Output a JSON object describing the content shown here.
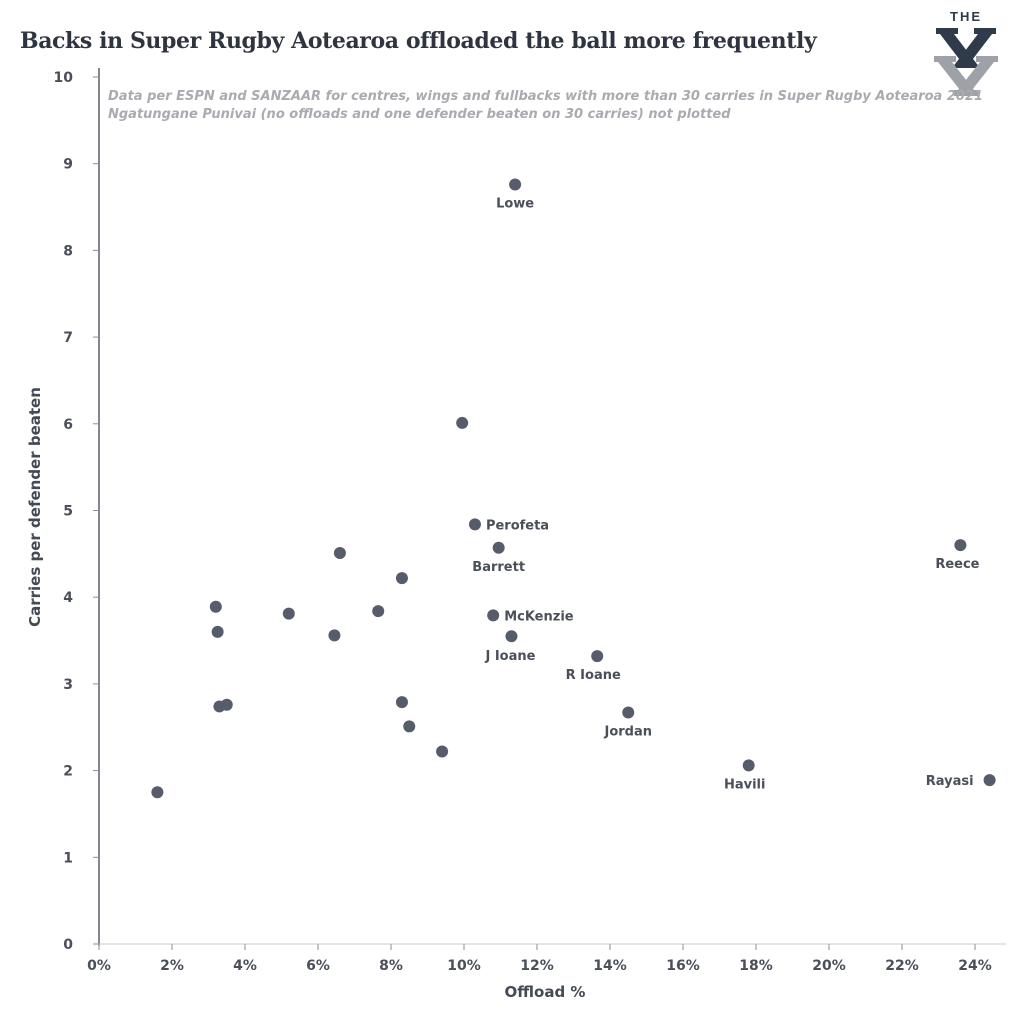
{
  "title": "Backs in Super Rugby Aotearoa offloaded the ball more frequently",
  "logo": {
    "text": "THE",
    "icon": "the-x-logo"
  },
  "colors": {
    "point": "#565c6a",
    "axis": "#3f4550",
    "note": "#a9abb0",
    "logo_dark": "#2f3b4a",
    "logo_light": "#9ea2a8"
  },
  "chart_data": {
    "type": "scatter",
    "title": "Backs in Super Rugby Aotearoa offloaded the ball more frequently",
    "xlabel": "Offload %",
    "ylabel": "Carries per defender beaten",
    "xlim": [
      0,
      24.5
    ],
    "ylim": [
      0,
      10
    ],
    "xticks": [
      0,
      2,
      4,
      6,
      8,
      10,
      12,
      14,
      16,
      18,
      20,
      22,
      24
    ],
    "xtick_labels": [
      "0%",
      "2%",
      "4%",
      "6%",
      "8%",
      "10%",
      "12%",
      "14%",
      "16%",
      "18%",
      "20%",
      "22%",
      "24%"
    ],
    "yticks": [
      0,
      1,
      2,
      3,
      4,
      5,
      6,
      7,
      8,
      9,
      10
    ],
    "ytick_labels": [
      "0",
      "1",
      "2",
      "3",
      "4",
      "5",
      "6",
      "7",
      "8",
      "9",
      "10"
    ],
    "grid": false,
    "annotations": [
      "Data per ESPN and SANZAAR for centres, wings and fullbacks with more than 30 carries in Super Rugby Aotearoa 2021",
      "Ngatungane Punivai (no offloads and one defender beaten on 30 carries) not plotted"
    ],
    "points": [
      {
        "x": 11.4,
        "y": 8.76,
        "label": "Lowe"
      },
      {
        "x": 9.95,
        "y": 6.01,
        "label": ""
      },
      {
        "x": 10.3,
        "y": 4.84,
        "label": "Perofeta"
      },
      {
        "x": 10.95,
        "y": 4.57,
        "label": "Barrett"
      },
      {
        "x": 23.6,
        "y": 4.6,
        "label": "Reece"
      },
      {
        "x": 6.6,
        "y": 4.51,
        "label": ""
      },
      {
        "x": 8.3,
        "y": 4.22,
        "label": ""
      },
      {
        "x": 3.2,
        "y": 3.89,
        "label": ""
      },
      {
        "x": 5.2,
        "y": 3.81,
        "label": ""
      },
      {
        "x": 7.65,
        "y": 3.84,
        "label": ""
      },
      {
        "x": 10.8,
        "y": 3.79,
        "label": "McKenzie"
      },
      {
        "x": 3.25,
        "y": 3.6,
        "label": ""
      },
      {
        "x": 6.45,
        "y": 3.56,
        "label": ""
      },
      {
        "x": 11.3,
        "y": 3.55,
        "label": "J Ioane"
      },
      {
        "x": 13.65,
        "y": 3.32,
        "label": "R Ioane"
      },
      {
        "x": 8.3,
        "y": 2.79,
        "label": ""
      },
      {
        "x": 3.3,
        "y": 2.74,
        "label": ""
      },
      {
        "x": 3.5,
        "y": 2.76,
        "label": ""
      },
      {
        "x": 14.5,
        "y": 2.67,
        "label": "Jordan"
      },
      {
        "x": 8.5,
        "y": 2.51,
        "label": ""
      },
      {
        "x": 9.4,
        "y": 2.22,
        "label": ""
      },
      {
        "x": 17.8,
        "y": 2.06,
        "label": "Havili"
      },
      {
        "x": 24.4,
        "y": 1.89,
        "label": "Rayasi"
      },
      {
        "x": 1.6,
        "y": 1.75,
        "label": ""
      }
    ]
  }
}
